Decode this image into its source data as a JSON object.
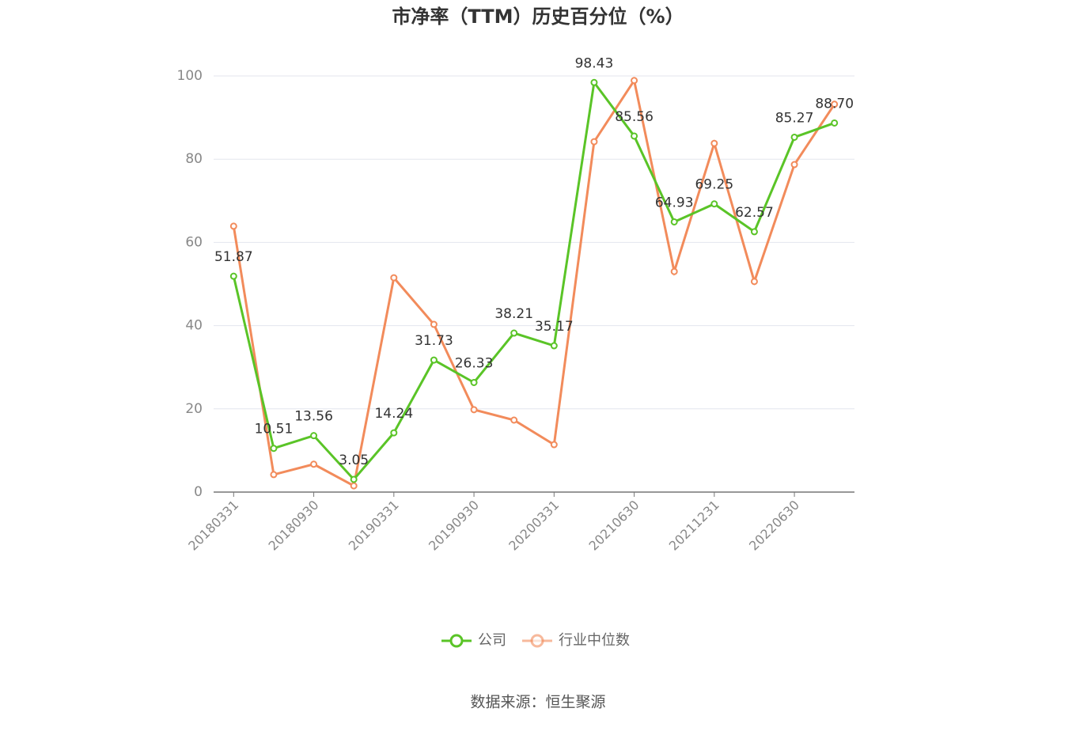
{
  "chart_data": {
    "type": "line",
    "title": "市净率（TTM）历史百分位（%）",
    "categories": [
      "20180331",
      null,
      "20180930",
      null,
      "20190331",
      null,
      "20190930",
      null,
      "20200331",
      null,
      "20210630",
      null,
      "20211231",
      null,
      "20220630",
      null
    ],
    "series": [
      {
        "name": "公司",
        "color": "#5ac427",
        "values": [
          51.87,
          10.51,
          13.56,
          3.05,
          14.24,
          31.73,
          26.33,
          38.21,
          35.17,
          98.43,
          85.56,
          64.93,
          69.25,
          62.57,
          85.27,
          88.7
        ],
        "value_labels": [
          "51.87",
          "10.51",
          "13.56",
          "3.05",
          "14.24",
          "31.73",
          "26.33",
          "38.21",
          "35.17",
          "98.43",
          "85.56",
          "64.93",
          "69.25",
          "62.57",
          "85.27",
          "88.70"
        ]
      },
      {
        "name": "行业中位数",
        "color": "#f28b5b",
        "values": [
          63.9,
          4.2,
          6.7,
          1.5,
          51.5,
          40.3,
          19.8,
          17.3,
          11.4,
          84.2,
          98.9,
          53.0,
          83.8,
          50.6,
          78.7,
          93.2
        ]
      }
    ],
    "ylim": [
      0,
      100
    ],
    "yticks": [
      0,
      20,
      40,
      60,
      80,
      100
    ],
    "grid": true,
    "legend": "bottom",
    "source": "数据来源：恒生聚源"
  }
}
